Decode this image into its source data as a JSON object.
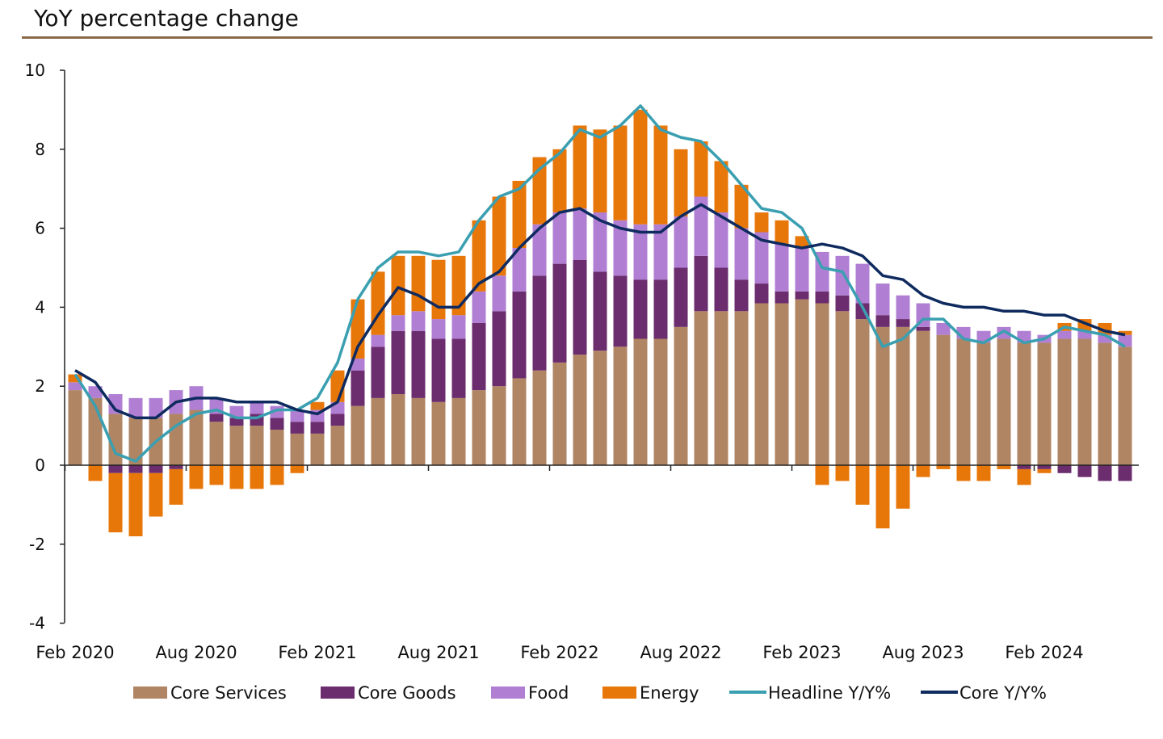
{
  "chart_data": {
    "type": "bar",
    "title": "YoY percentage change",
    "xlabel": "",
    "ylabel": "",
    "ylim": [
      -4,
      10
    ],
    "yticks": [
      -4,
      -2,
      0,
      2,
      4,
      6,
      8,
      10
    ],
    "stacked": true,
    "grid": false,
    "legend_position": "bottom",
    "x_tick_labels": [
      "Feb 2020",
      "Aug 2020",
      "Feb 2021",
      "Aug 2021",
      "Feb 2022",
      "Aug 2022",
      "Feb 2023",
      "Aug 2023",
      "Feb 2024"
    ],
    "categories": [
      "Feb 2020",
      "Mar 2020",
      "Apr 2020",
      "May 2020",
      "Jun 2020",
      "Jul 2020",
      "Aug 2020",
      "Sep 2020",
      "Oct 2020",
      "Nov 2020",
      "Dec 2020",
      "Jan 2021",
      "Feb 2021",
      "Mar 2021",
      "Apr 2021",
      "May 2021",
      "Jun 2021",
      "Jul 2021",
      "Aug 2021",
      "Sep 2021",
      "Oct 2021",
      "Nov 2021",
      "Dec 2021",
      "Jan 2022",
      "Feb 2022",
      "Mar 2022",
      "Apr 2022",
      "May 2022",
      "Jun 2022",
      "Jul 2022",
      "Aug 2022",
      "Sep 2022",
      "Oct 2022",
      "Nov 2022",
      "Dec 2022",
      "Jan 2023",
      "Feb 2023",
      "Mar 2023",
      "Apr 2023",
      "May 2023",
      "Jun 2023",
      "Jul 2023",
      "Aug 2023",
      "Sep 2023",
      "Oct 2023",
      "Nov 2023",
      "Dec 2023",
      "Jan 2024",
      "Feb 2024",
      "Mar 2024",
      "Apr 2024",
      "May 2024",
      "Jun 2024"
    ],
    "series": [
      {
        "name": "Core Services",
        "kind": "bar",
        "color": "#b08563",
        "values": [
          1.9,
          1.7,
          1.3,
          1.2,
          1.2,
          1.3,
          1.4,
          1.1,
          1.0,
          1.0,
          0.9,
          0.8,
          0.8,
          1.0,
          1.5,
          1.7,
          1.8,
          1.7,
          1.6,
          1.7,
          1.9,
          2.0,
          2.2,
          2.4,
          2.6,
          2.8,
          2.9,
          3.0,
          3.2,
          3.2,
          3.5,
          3.9,
          3.9,
          3.9,
          4.1,
          4.1,
          4.2,
          4.1,
          3.9,
          3.7,
          3.5,
          3.5,
          3.4,
          3.3,
          3.2,
          3.1,
          3.2,
          3.1,
          3.1,
          3.2,
          3.2,
          3.1,
          3.0
        ]
      },
      {
        "name": "Core Goods",
        "kind": "bar",
        "color": "#6b2d6e",
        "values": [
          0,
          0,
          -0.2,
          -0.2,
          -0.2,
          -0.1,
          0,
          0.2,
          0.2,
          0.3,
          0.3,
          0.3,
          0.3,
          0.3,
          0.9,
          1.3,
          1.6,
          1.7,
          1.6,
          1.5,
          1.7,
          1.9,
          2.2,
          2.4,
          2.5,
          2.4,
          2.0,
          1.8,
          1.5,
          1.5,
          1.5,
          1.4,
          1.1,
          0.8,
          0.5,
          0.3,
          0.2,
          0.3,
          0.4,
          0.4,
          0.3,
          0.2,
          0.1,
          0,
          0,
          0,
          0,
          -0.1,
          -0.1,
          -0.2,
          -0.3,
          -0.4,
          -0.4
        ]
      },
      {
        "name": "Food",
        "kind": "bar",
        "color": "#b07fd4",
        "values": [
          0.2,
          0.3,
          0.5,
          0.5,
          0.5,
          0.6,
          0.6,
          0.4,
          0.3,
          0.3,
          0.3,
          0.3,
          0.3,
          0.3,
          0.3,
          0.3,
          0.4,
          0.5,
          0.5,
          0.6,
          0.8,
          0.9,
          1.1,
          1.3,
          1.3,
          1.3,
          1.5,
          1.4,
          1.4,
          1.4,
          1.3,
          1.5,
          1.4,
          1.3,
          1.3,
          1.2,
          1.1,
          1.0,
          1.0,
          1.0,
          0.8,
          0.6,
          0.6,
          0.3,
          0.3,
          0.3,
          0.3,
          0.3,
          0.2,
          0.2,
          0.2,
          0.2,
          0.3
        ]
      },
      {
        "name": "Energy",
        "kind": "bar",
        "color": "#e8770a",
        "values": [
          0.2,
          -0.4,
          -1.5,
          -1.6,
          -1.1,
          -0.9,
          -0.6,
          -0.5,
          -0.6,
          -0.6,
          -0.5,
          -0.2,
          0.2,
          0.8,
          1.5,
          1.6,
          1.5,
          1.4,
          1.5,
          1.5,
          1.8,
          2.0,
          1.7,
          1.7,
          1.6,
          2.1,
          2.1,
          2.4,
          2.9,
          2.5,
          1.7,
          1.4,
          1.3,
          1.1,
          0.5,
          0.6,
          0.3,
          -0.5,
          -0.4,
          -1.0,
          -1.6,
          -1.1,
          -0.3,
          -0.1,
          -0.4,
          -0.4,
          -0.1,
          -0.4,
          -0.1,
          0.2,
          0.3,
          0.3,
          0.1
        ]
      },
      {
        "name": "Headline Y/Y%",
        "kind": "line",
        "color": "#3a9fb0",
        "values": [
          2.3,
          1.5,
          0.3,
          0.1,
          0.6,
          1.0,
          1.3,
          1.4,
          1.2,
          1.2,
          1.4,
          1.4,
          1.7,
          2.6,
          4.2,
          5.0,
          5.4,
          5.4,
          5.3,
          5.4,
          6.2,
          6.8,
          7.0,
          7.5,
          7.9,
          8.5,
          8.3,
          8.6,
          9.1,
          8.5,
          8.3,
          8.2,
          7.7,
          7.1,
          6.5,
          6.4,
          6.0,
          5.0,
          4.9,
          4.0,
          3.0,
          3.2,
          3.7,
          3.7,
          3.2,
          3.1,
          3.4,
          3.1,
          3.2,
          3.5,
          3.4,
          3.3,
          3.0
        ]
      },
      {
        "name": "Core Y/Y%",
        "kind": "line",
        "color": "#0e2a5e",
        "values": [
          2.4,
          2.1,
          1.4,
          1.2,
          1.2,
          1.6,
          1.7,
          1.7,
          1.6,
          1.6,
          1.6,
          1.4,
          1.3,
          1.6,
          3.0,
          3.8,
          4.5,
          4.3,
          4.0,
          4.0,
          4.6,
          4.9,
          5.5,
          6.0,
          6.4,
          6.5,
          6.2,
          6.0,
          5.9,
          5.9,
          6.3,
          6.6,
          6.3,
          6.0,
          5.7,
          5.6,
          5.5,
          5.6,
          5.5,
          5.3,
          4.8,
          4.7,
          4.3,
          4.1,
          4.0,
          4.0,
          3.9,
          3.9,
          3.8,
          3.8,
          3.6,
          3.4,
          3.3
        ]
      }
    ]
  }
}
